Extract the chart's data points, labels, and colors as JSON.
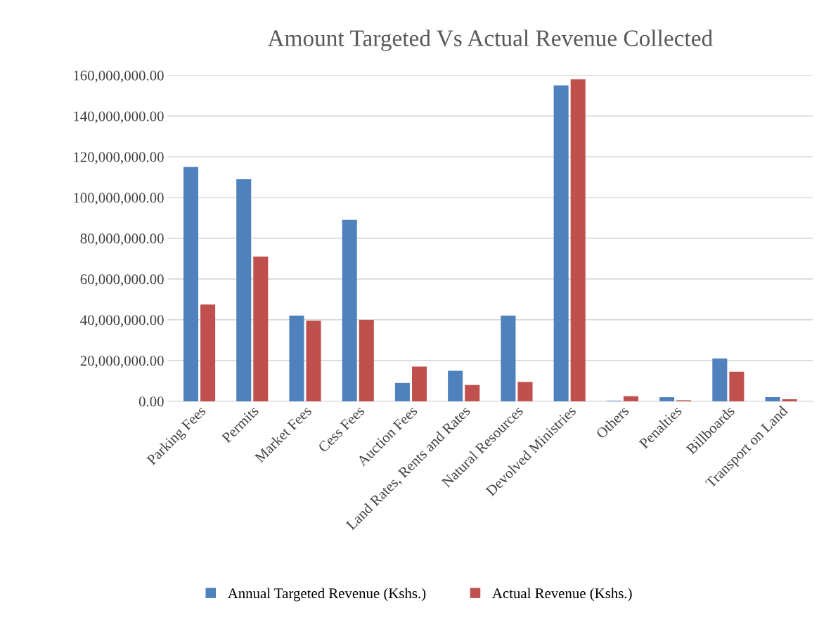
{
  "chart_data": {
    "type": "bar",
    "title": "Amount Targeted Vs Actual Revenue Collected",
    "categories": [
      "Parking Fees",
      "Permits",
      "Market Fees",
      "Cess Fees",
      "Auction Fees",
      "Land Rates, Rents and Rates",
      "Natural Resources",
      "Devolved Ministries",
      "Others",
      "Penalties",
      "Billboards",
      "Transport on Land"
    ],
    "series": [
      {
        "name": "Annual Targeted Revenue (Kshs.)",
        "color": "#4f81bd",
        "values": [
          115000000,
          109000000,
          42000000,
          89000000,
          9000000,
          15000000,
          42000000,
          155000000,
          300000,
          2000000,
          21000000,
          2000000
        ]
      },
      {
        "name": "Actual Revenue (Kshs.)",
        "color": "#c0504d",
        "values": [
          47500000,
          71000000,
          39500000,
          40000000,
          17000000,
          8000000,
          9500000,
          158000000,
          2500000,
          500000,
          14500000,
          1000000
        ]
      }
    ],
    "ylim": [
      0,
      160000000
    ],
    "yticks": [
      {
        "value": 0,
        "label": "0.00"
      },
      {
        "value": 20000000,
        "label": "20,000,000.00"
      },
      {
        "value": 40000000,
        "label": "40,000,000.00"
      },
      {
        "value": 60000000,
        "label": "60,000,000.00"
      },
      {
        "value": 80000000,
        "label": "80,000,000.00"
      },
      {
        "value": 100000000,
        "label": "100,000,000.00"
      },
      {
        "value": 120000000,
        "label": "120,000,000.00"
      },
      {
        "value": 140000000,
        "label": "140,000,000.00"
      },
      {
        "value": 160000000,
        "label": "160,000,000.00"
      }
    ],
    "grid": "y",
    "legend": "bottom"
  }
}
